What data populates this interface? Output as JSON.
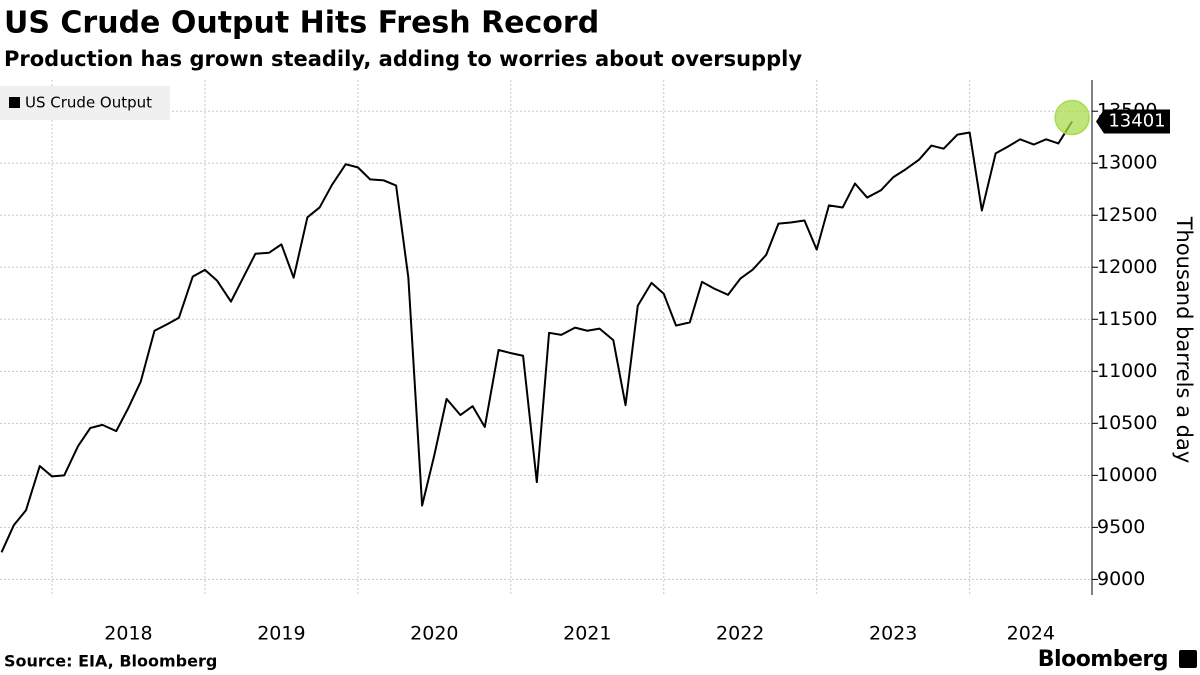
{
  "chart_data": {
    "type": "line",
    "title": "US Crude Output Hits Fresh Record",
    "subtitle": "Production has grown steadily, adding to worries about oversupply",
    "y_label": "Thousand barrels a day",
    "source": "Source: EIA, Bloomberg",
    "brand": "Bloomberg",
    "x": [
      2017.67,
      2017.75,
      2017.83,
      2017.92,
      2018,
      2018.08,
      2018.17,
      2018.25,
      2018.33,
      2018.42,
      2018.5,
      2018.58,
      2018.67,
      2018.75,
      2018.83,
      2018.92,
      2019,
      2019.08,
      2019.17,
      2019.25,
      2019.33,
      2019.42,
      2019.5,
      2019.58,
      2019.67,
      2019.75,
      2019.83,
      2019.92,
      2020,
      2020.08,
      2020.17,
      2020.25,
      2020.33,
      2020.42,
      2020.5,
      2020.58,
      2020.67,
      2020.75,
      2020.83,
      2020.92,
      2021,
      2021.08,
      2021.17,
      2021.25,
      2021.33,
      2021.42,
      2021.5,
      2021.58,
      2021.67,
      2021.75,
      2021.83,
      2021.92,
      2022,
      2022.08,
      2022.17,
      2022.25,
      2022.33,
      2022.42,
      2022.5,
      2022.58,
      2022.67,
      2022.75,
      2022.83,
      2022.92,
      2023,
      2023.08,
      2023.17,
      2023.25,
      2023.33,
      2023.42,
      2023.5,
      2023.58,
      2023.67,
      2023.75,
      2023.83,
      2023.92,
      2024,
      2024.08,
      2024.17,
      2024.25,
      2024.33,
      2024.42,
      2024.5,
      2024.58,
      2024.67
    ],
    "series": [
      {
        "name": "US Crude Output",
        "color": "#000000",
        "values": [
          9260,
          9520,
          9665,
          10090,
          9990,
          10000,
          10280,
          10455,
          10485,
          10425,
          10650,
          10900,
          11390,
          11450,
          11515,
          11910,
          11975,
          11870,
          11670,
          11900,
          12130,
          12140,
          12220,
          11900,
          12480,
          12575,
          12790,
          12990,
          12960,
          12845,
          12835,
          12785,
          11900,
          9710,
          10195,
          10735,
          10580,
          10665,
          10465,
          11205,
          11175,
          11150,
          9935,
          11370,
          11350,
          11420,
          11390,
          11410,
          11300,
          10675,
          11630,
          11850,
          11745,
          11440,
          11470,
          11860,
          11795,
          11735,
          11890,
          11975,
          12120,
          12420,
          12430,
          12450,
          12170,
          12595,
          12575,
          12805,
          12670,
          12740,
          12865,
          12940,
          13035,
          13170,
          13140,
          13275,
          13295,
          12545,
          13095,
          13160,
          13230,
          13180,
          13230,
          13190,
          13401
        ]
      }
    ],
    "xlim": [
      2017.66,
      2024.8
    ],
    "xticks": [
      2018,
      2019,
      2020,
      2021,
      2022,
      2023,
      2024
    ],
    "ylim": [
      8850,
      13800
    ],
    "yticks": [
      9000,
      9500,
      10000,
      10500,
      11000,
      11500,
      12000,
      12500,
      13000,
      13500
    ],
    "grid": true,
    "legend": "top-left",
    "highlight_color": "#a8dc4c"
  }
}
